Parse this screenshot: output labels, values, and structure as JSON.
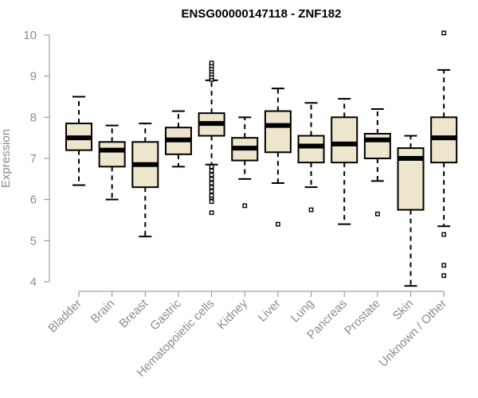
{
  "chart_data": {
    "type": "boxplot",
    "title": "ENSG00000147118 - ZNF182",
    "ylabel": "Expression",
    "xlabel": "",
    "ylim": [
      3.85,
      10.25
    ],
    "yticks": [
      4,
      5,
      6,
      7,
      8,
      9,
      10
    ],
    "box_fill": "#ede6cc",
    "categories": [
      "Bladder",
      "Brain",
      "Breast",
      "Gastric",
      "Hematopoietic cells",
      "Kidney",
      "Liver",
      "Lung",
      "Pancreas",
      "Prostate",
      "Skin",
      "Unknown / Other"
    ],
    "boxes": [
      {
        "whisker_low": 6.35,
        "q1": 7.2,
        "median": 7.5,
        "q3": 7.85,
        "whisker_high": 8.5,
        "outliers": []
      },
      {
        "whisker_low": 6.0,
        "q1": 6.8,
        "median": 7.2,
        "q3": 7.4,
        "whisker_high": 7.8,
        "outliers": []
      },
      {
        "whisker_low": 5.1,
        "q1": 6.3,
        "median": 6.85,
        "q3": 7.4,
        "whisker_high": 7.85,
        "outliers": []
      },
      {
        "whisker_low": 6.8,
        "q1": 7.1,
        "median": 7.45,
        "q3": 7.75,
        "whisker_high": 8.15,
        "outliers": []
      },
      {
        "whisker_low": 6.85,
        "q1": 7.55,
        "median": 7.85,
        "q3": 8.1,
        "whisker_high": 8.9,
        "outliers": [
          5.68,
          5.95,
          6.05,
          6.1,
          6.2,
          6.3,
          6.4,
          6.5,
          6.6,
          6.7,
          6.8,
          8.92,
          8.98,
          9.05,
          9.12,
          9.18,
          9.25,
          9.32
        ]
      },
      {
        "whisker_low": 6.5,
        "q1": 6.95,
        "median": 7.25,
        "q3": 7.5,
        "whisker_high": 8.0,
        "outliers": [
          5.85
        ]
      },
      {
        "whisker_low": 6.4,
        "q1": 7.15,
        "median": 7.8,
        "q3": 8.15,
        "whisker_high": 8.7,
        "outliers": [
          5.4
        ]
      },
      {
        "whisker_low": 6.3,
        "q1": 6.9,
        "median": 7.3,
        "q3": 7.55,
        "whisker_high": 8.35,
        "outliers": [
          5.75
        ]
      },
      {
        "whisker_low": 5.4,
        "q1": 6.9,
        "median": 7.35,
        "q3": 8.0,
        "whisker_high": 8.45,
        "outliers": []
      },
      {
        "whisker_low": 6.45,
        "q1": 7.0,
        "median": 7.45,
        "q3": 7.6,
        "whisker_high": 8.2,
        "outliers": [
          5.65
        ]
      },
      {
        "whisker_low": 3.9,
        "q1": 5.75,
        "median": 7.0,
        "q3": 7.25,
        "whisker_high": 7.55,
        "outliers": []
      },
      {
        "whisker_low": 5.35,
        "q1": 6.9,
        "median": 7.5,
        "q3": 8.0,
        "whisker_high": 9.15,
        "outliers": [
          4.15,
          4.4,
          5.15,
          10.05
        ]
      }
    ]
  }
}
